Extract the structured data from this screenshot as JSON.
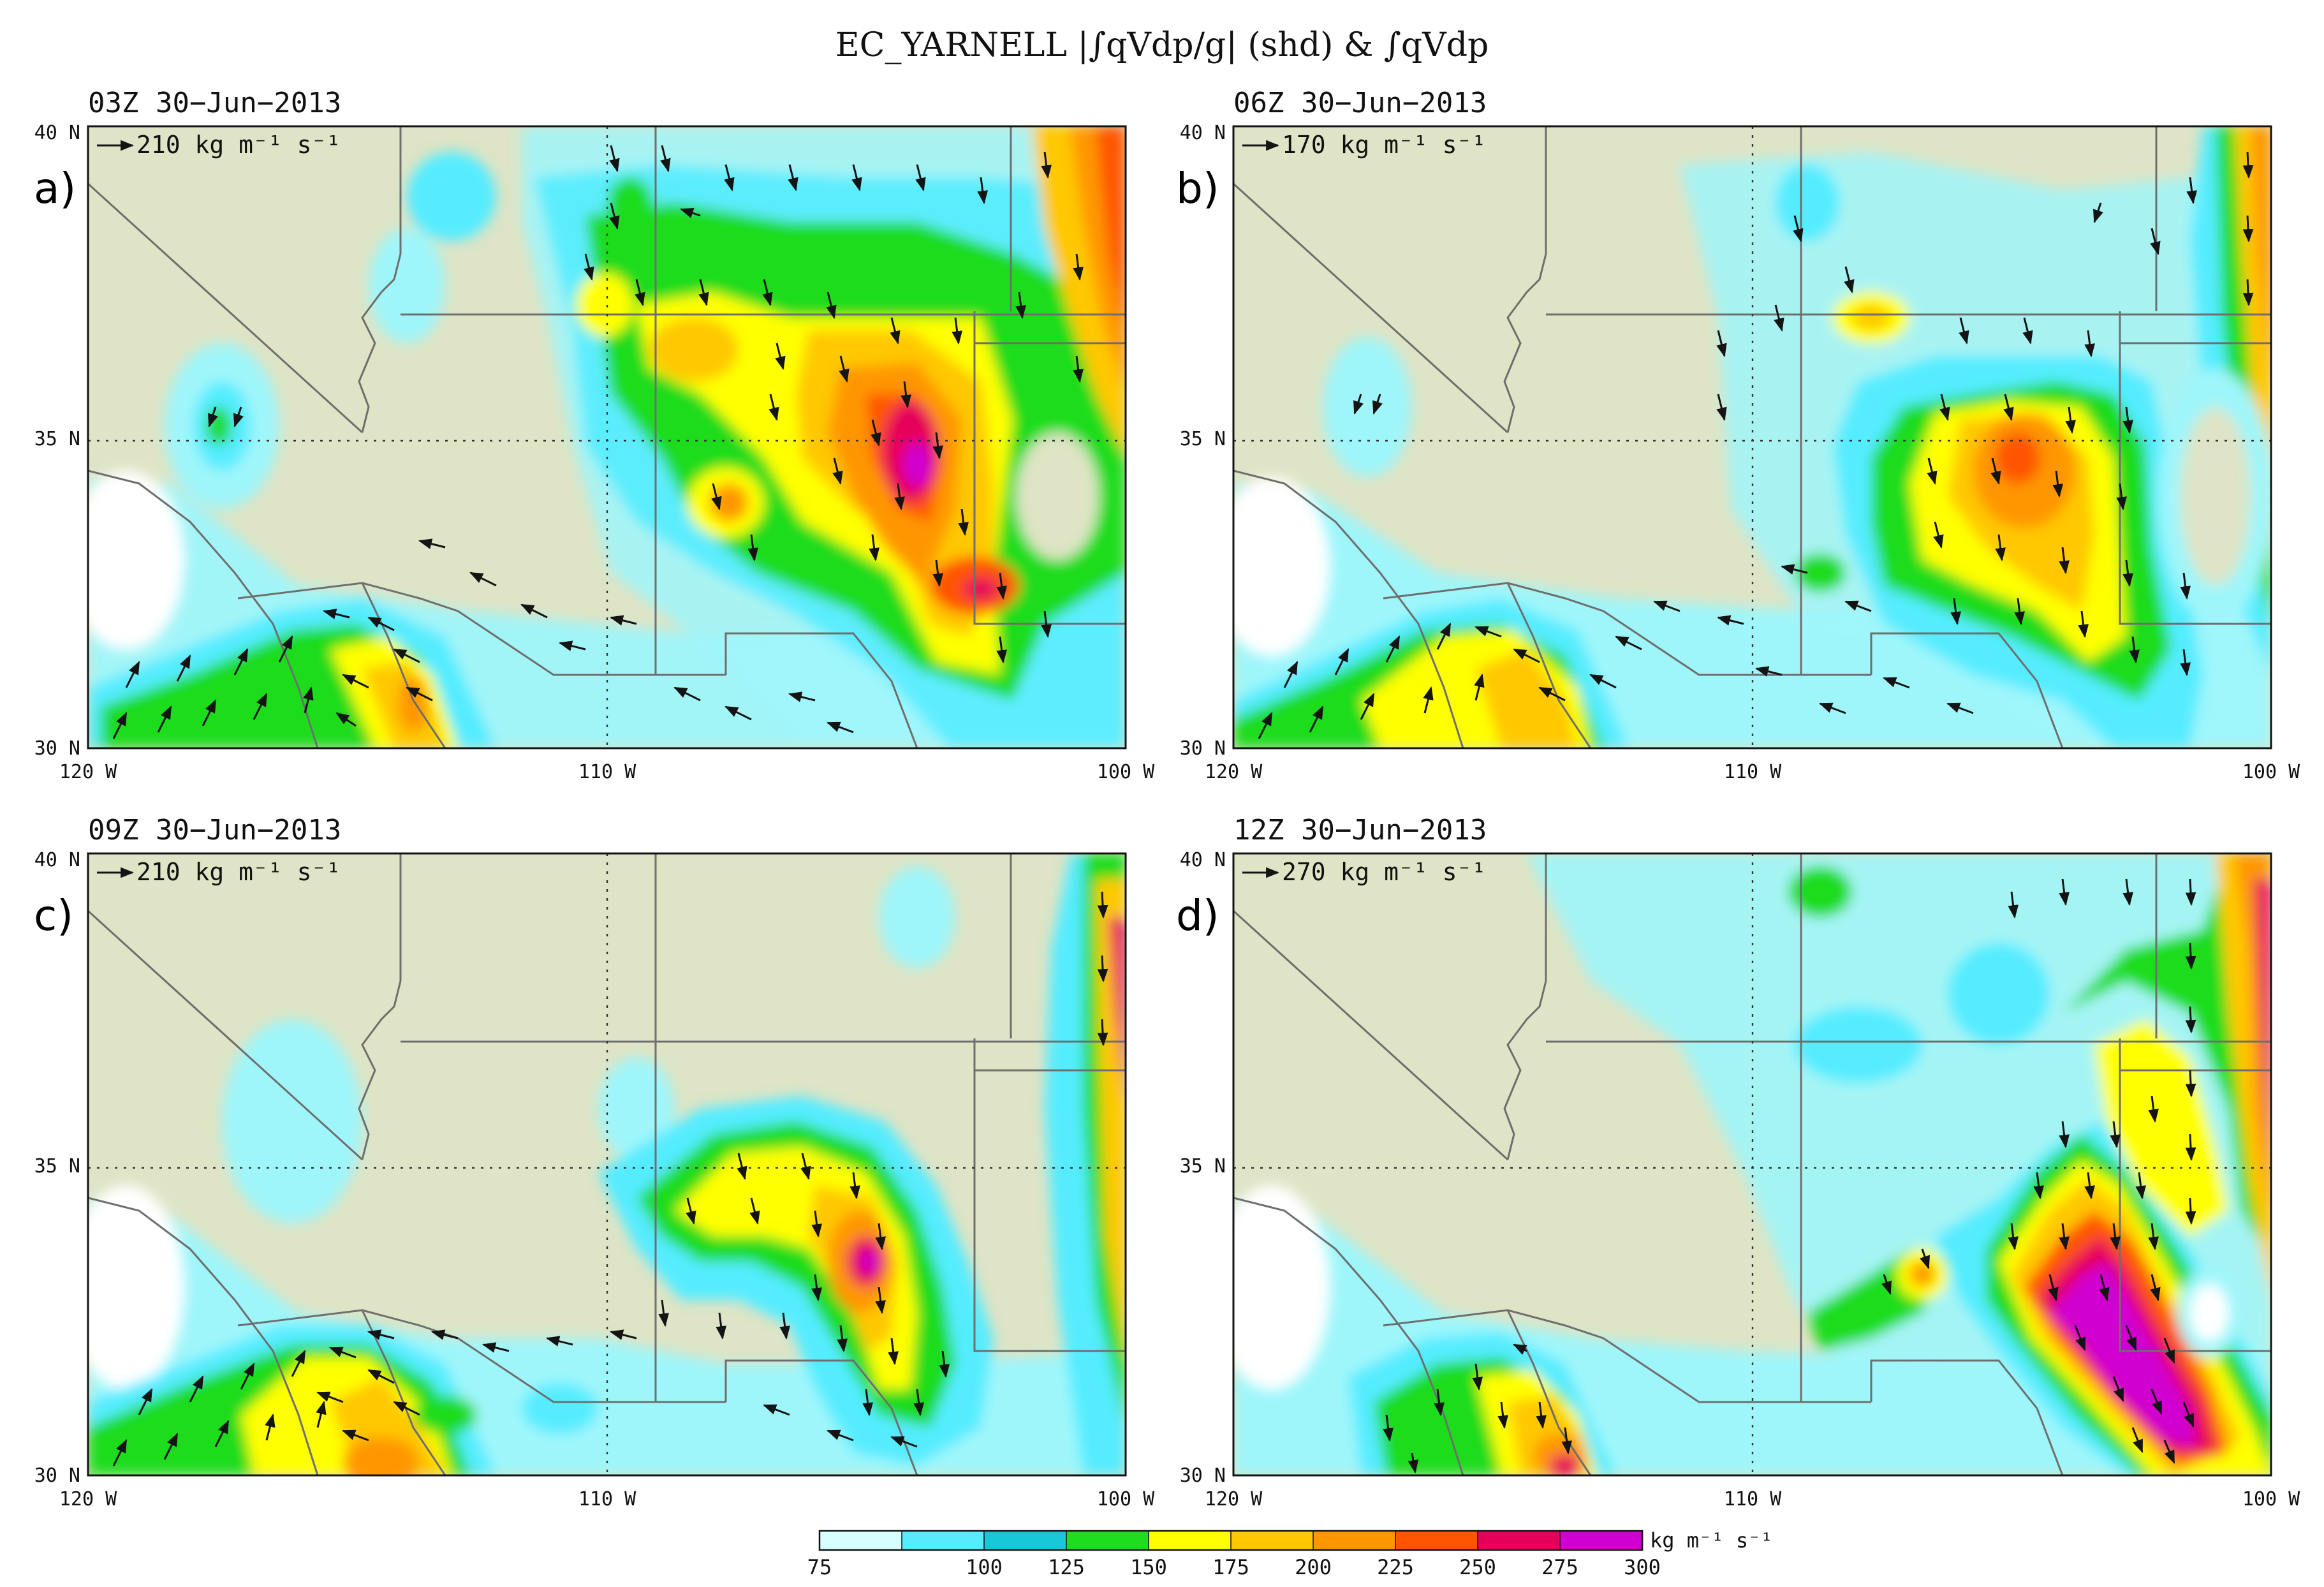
{
  "figure": {
    "title": "EC_YARNELL |∫qVdp/g| (shd) & ∫qVdp",
    "colorbar": {
      "ticks": [
        "75",
        "100",
        "125",
        "150",
        "175",
        "200",
        "225",
        "250",
        "275",
        "300"
      ],
      "colors": [
        "#d8ffff",
        "#55ecff",
        "#19c8d8",
        "#1fdc1f",
        "#ffff00",
        "#ffc800",
        "#ff9600",
        "#ff5500",
        "#e6005a",
        "#d000d0"
      ],
      "units": "kg m⁻¹ s⁻¹"
    },
    "map_colors": {
      "land": "#dee4c5",
      "boundary": "#6e6e6e",
      "arrow": "#141414"
    },
    "panels": [
      {
        "id": "a",
        "letter": "a)",
        "time": "03Z 30−Jun−2013",
        "reference_vector": "210 kg m⁻¹ s⁻¹"
      },
      {
        "id": "b",
        "letter": "b)",
        "time": "06Z 30−Jun−2013",
        "reference_vector": "170 kg m⁻¹ s⁻¹"
      },
      {
        "id": "c",
        "letter": "c)",
        "time": "09Z 30−Jun−2013",
        "reference_vector": "210 kg m⁻¹ s⁻¹"
      },
      {
        "id": "d",
        "letter": "d)",
        "time": "12Z 30−Jun−2013",
        "reference_vector": "270 kg m⁻¹ s⁻¹"
      }
    ],
    "axes": {
      "lat_ticks": [
        "40 N",
        "35 N",
        "30 N"
      ],
      "lon_ticks": [
        "120 W",
        "110 W",
        "100 W"
      ]
    }
  }
}
